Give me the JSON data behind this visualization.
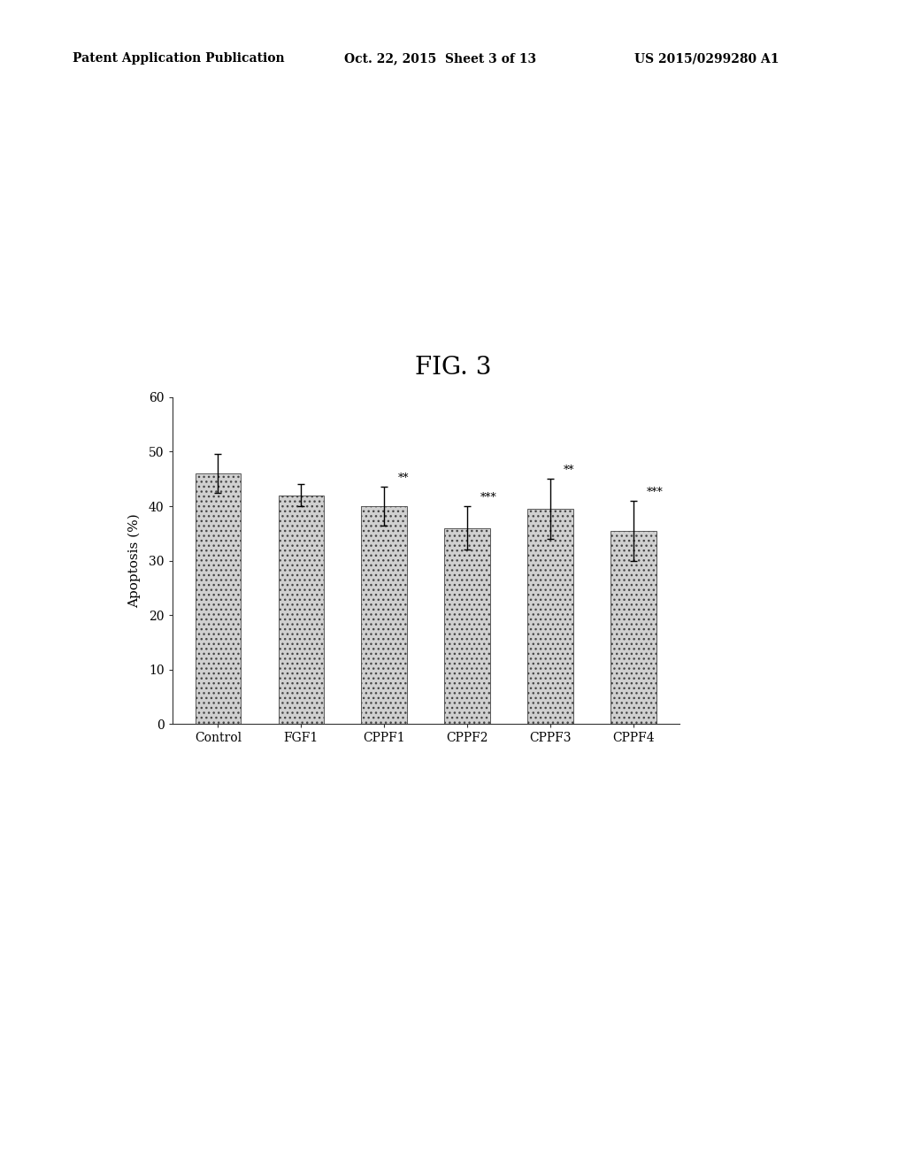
{
  "categories": [
    "Control",
    "FGF1",
    "CPPF1",
    "CPPF2",
    "CPPF3",
    "CPPF4"
  ],
  "values": [
    46.0,
    42.0,
    40.0,
    36.0,
    39.5,
    35.5
  ],
  "errors": [
    3.5,
    2.0,
    3.5,
    4.0,
    5.5,
    5.5
  ],
  "significance": [
    "",
    "",
    "**",
    "***",
    "**",
    "***"
  ],
  "ylabel": "Apoptosis (%)",
  "ylim": [
    0,
    60
  ],
  "yticks": [
    0,
    10,
    20,
    30,
    40,
    50,
    60
  ],
  "fig_title": "FIG. 3",
  "header_left": "Patent Application Publication",
  "header_mid": "Oct. 22, 2015  Sheet 3 of 13",
  "header_right": "US 2015/0299280 A1",
  "bar_color": "#c8c8c8",
  "bar_edge_color": "#444444",
  "background_color": "#ffffff",
  "bar_width": 0.55,
  "figsize": [
    10.24,
    13.2
  ],
  "dpi": 100
}
